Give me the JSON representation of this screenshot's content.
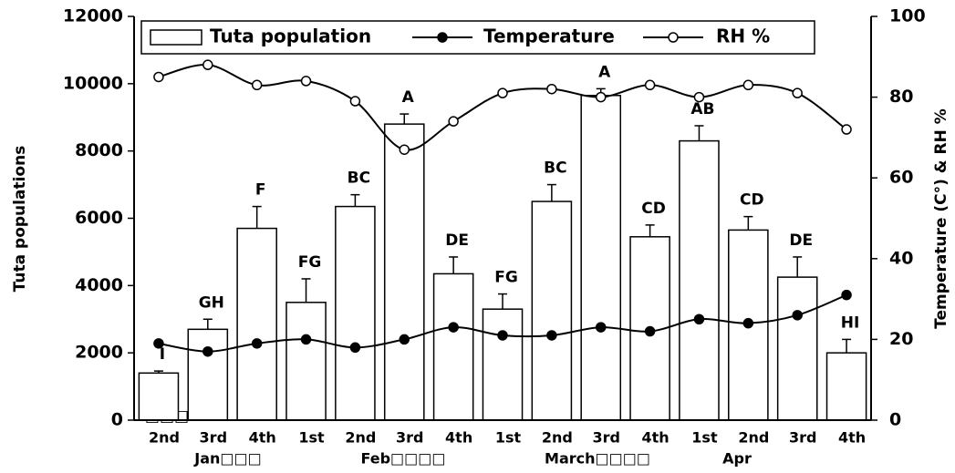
{
  "chart_data": {
    "type": "bar",
    "categories": [
      "2nd",
      "3rd",
      "4th",
      "1st",
      "2nd",
      "3rd",
      "4th",
      "1st",
      "2nd",
      "3rd",
      "4th",
      "1st",
      "2nd",
      "3rd",
      "4th"
    ],
    "month_labels": [
      "Jan□□□",
      "Feb□□□□",
      "March□□□□",
      "Apr"
    ],
    "annotation": "□□□",
    "ylabel": "Tuta populations",
    "y2label": "Temperature (C°) & RH %",
    "ylim": [
      0,
      12000
    ],
    "yticks": [
      0,
      2000,
      4000,
      6000,
      8000,
      10000,
      12000
    ],
    "y2lim": [
      0,
      100
    ],
    "y2ticks": [
      0,
      20,
      40,
      60,
      80,
      100
    ],
    "legend": "top",
    "series": [
      {
        "name": "Tuta population",
        "type": "bar",
        "color": "#ffffff",
        "values": [
          1400,
          2700,
          5700,
          3500,
          6350,
          8800,
          4350,
          3300,
          6500,
          9650,
          5450,
          8300,
          5650,
          4250,
          2000
        ],
        "errors": [
          60,
          300,
          650,
          700,
          350,
          300,
          500,
          450,
          500,
          200,
          350,
          450,
          400,
          600,
          400
        ],
        "value_labels": [
          "I",
          "GH",
          "F",
          "FG",
          "BC",
          "A",
          "DE",
          "FG",
          "BC",
          "A",
          "CD",
          "AB",
          "CD",
          "DE",
          "HI"
        ]
      },
      {
        "name": "Temperature",
        "type": "line",
        "axis": "y2",
        "color": "#000000",
        "marker": "filled",
        "values": [
          19,
          17,
          19,
          20,
          18,
          20,
          23,
          21,
          21,
          23,
          22,
          25,
          24,
          26,
          31
        ]
      },
      {
        "name": "RH %",
        "type": "line",
        "axis": "y2",
        "color": "#000000",
        "marker": "open",
        "values": [
          85,
          88,
          83,
          84,
          79,
          67,
          74,
          81,
          82,
          80,
          83,
          80,
          83,
          81,
          72
        ]
      }
    ]
  }
}
